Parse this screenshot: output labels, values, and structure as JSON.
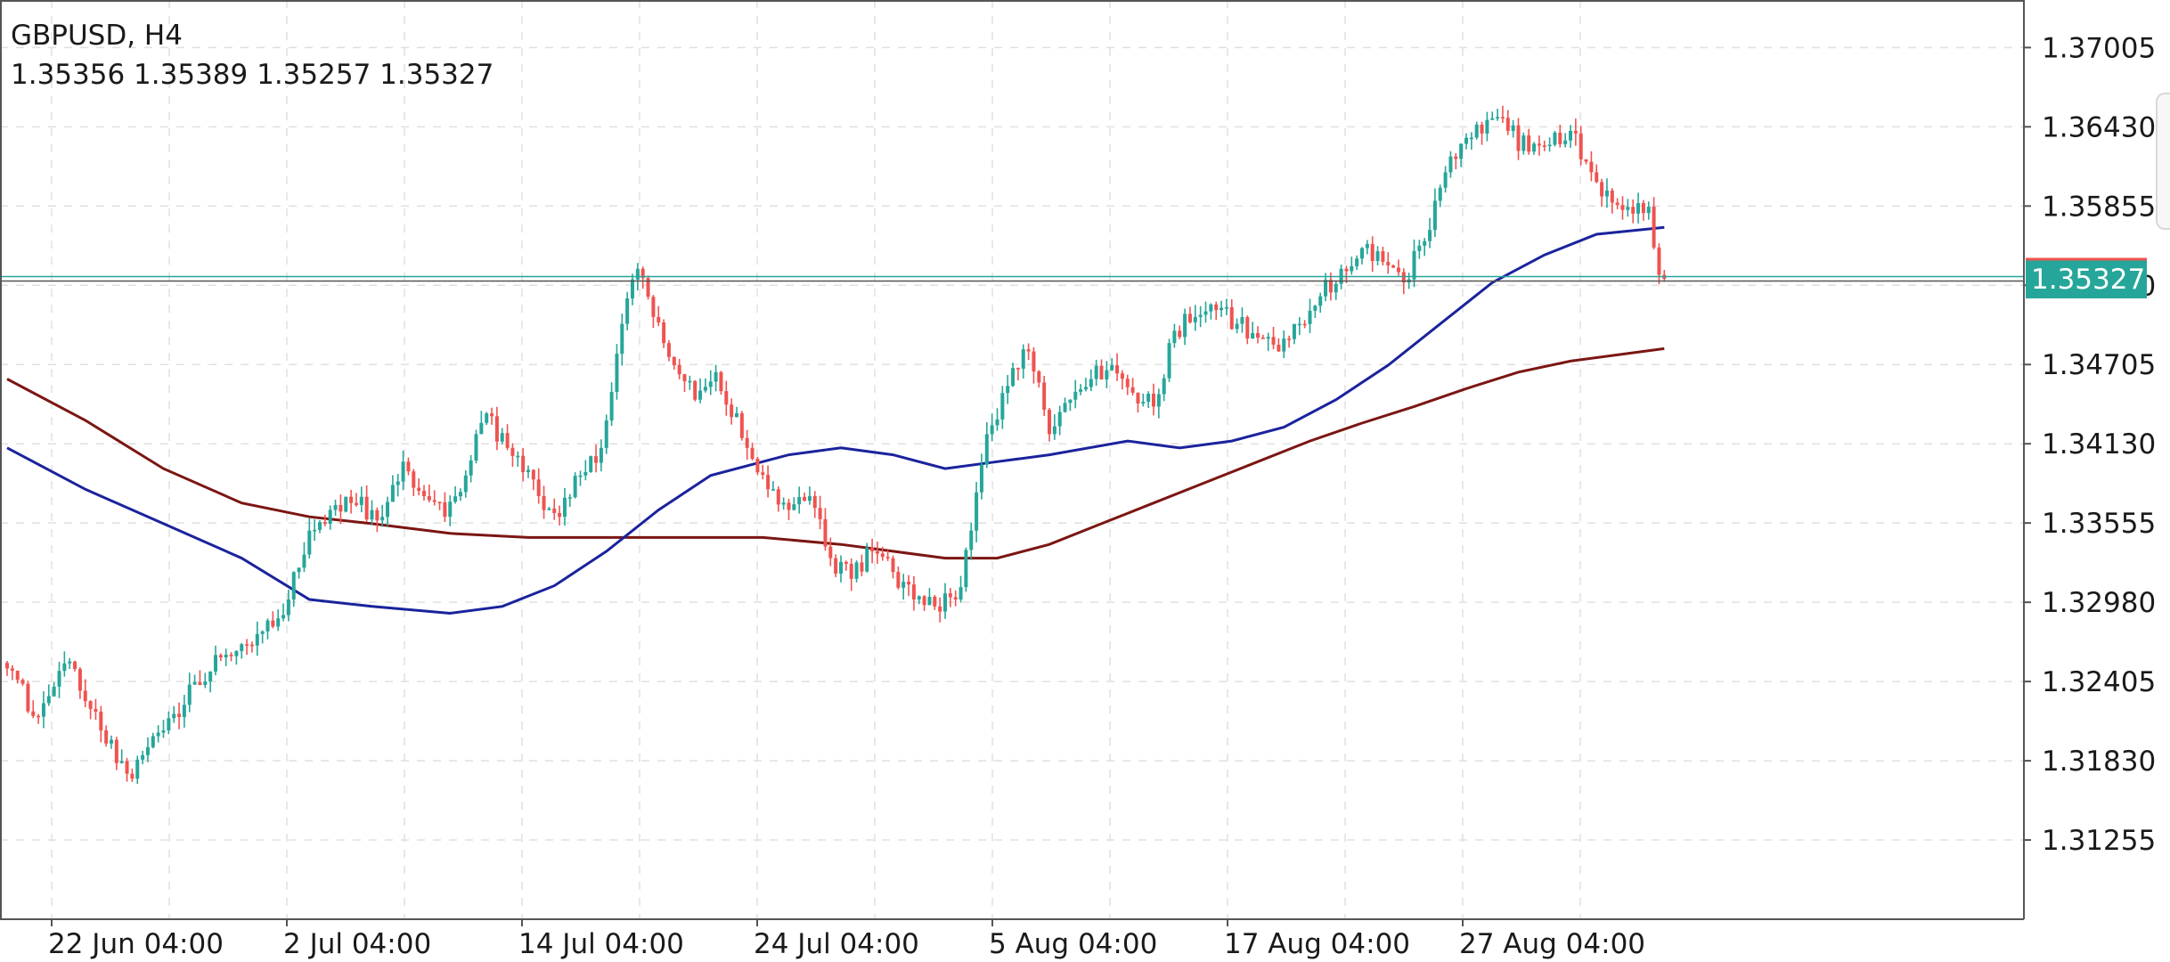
{
  "header": {
    "symbol_timeframe": "GBPUSD, H4",
    "ohlc": "1.35356 1.35389 1.35257 1.35327"
  },
  "price_tag": {
    "label": "1.35327",
    "color": "#26a69a"
  },
  "chart_data": {
    "type": "candlestick",
    "symbol": "GBPUSD",
    "timeframe": "H4",
    "y_axis": {
      "ticks": [
        "1.37005",
        "1.36430",
        "1.35855",
        "1.35280",
        "1.34705",
        "1.34130",
        "1.33555",
        "1.32980",
        "1.32405",
        "1.31830",
        "1.31255"
      ],
      "range": [
        1.3068,
        1.3735
      ]
    },
    "x_axis": {
      "ticks": [
        "22 Jun 04:00",
        "2 Jul 04:00",
        "14 Jul 04:00",
        "24 Jul 04:00",
        "5 Aug 04:00",
        "17 Aug 04:00",
        "27 Aug 04:00"
      ]
    },
    "grid": true,
    "colors": {
      "bull": "#26a69a",
      "bear": "#ef5350",
      "ma_fast": "#1a239c",
      "ma_slow": "#7b1613",
      "grid": "#e0e0e0",
      "price_line": "#26a69a"
    },
    "last_price": 1.35327,
    "price_anchors": [
      [
        0,
        1.325
      ],
      [
        6,
        1.3215
      ],
      [
        12,
        1.3255
      ],
      [
        18,
        1.3205
      ],
      [
        24,
        1.317
      ],
      [
        30,
        1.3205
      ],
      [
        36,
        1.324
      ],
      [
        42,
        1.326
      ],
      [
        48,
        1.3275
      ],
      [
        54,
        1.33
      ],
      [
        58,
        1.335
      ],
      [
        62,
        1.3365
      ],
      [
        66,
        1.337
      ],
      [
        72,
        1.336
      ],
      [
        76,
        1.34
      ],
      [
        80,
        1.3375
      ],
      [
        84,
        1.336
      ],
      [
        88,
        1.339
      ],
      [
        92,
        1.3435
      ],
      [
        96,
        1.341
      ],
      [
        102,
        1.3375
      ],
      [
        106,
        1.336
      ],
      [
        110,
        1.339
      ],
      [
        114,
        1.341
      ],
      [
        118,
        1.35
      ],
      [
        121,
        1.354
      ],
      [
        124,
        1.3505
      ],
      [
        128,
        1.347
      ],
      [
        132,
        1.3445
      ],
      [
        136,
        1.3465
      ],
      [
        142,
        1.341
      ],
      [
        146,
        1.338
      ],
      [
        150,
        1.3365
      ],
      [
        154,
        1.3375
      ],
      [
        158,
        1.333
      ],
      [
        162,
        1.3315
      ],
      [
        166,
        1.3335
      ],
      [
        170,
        1.332
      ],
      [
        174,
        1.33
      ],
      [
        178,
        1.3295
      ],
      [
        182,
        1.33
      ],
      [
        185,
        1.335
      ],
      [
        188,
        1.342
      ],
      [
        192,
        1.3455
      ],
      [
        196,
        1.348
      ],
      [
        200,
        1.342
      ],
      [
        204,
        1.3445
      ],
      [
        208,
        1.346
      ],
      [
        212,
        1.347
      ],
      [
        216,
        1.345
      ],
      [
        220,
        1.344
      ],
      [
        224,
        1.3495
      ],
      [
        228,
        1.3505
      ],
      [
        232,
        1.351
      ],
      [
        236,
        1.35
      ],
      [
        240,
        1.349
      ],
      [
        244,
        1.348
      ],
      [
        248,
        1.35
      ],
      [
        252,
        1.352
      ],
      [
        256,
        1.354
      ],
      [
        260,
        1.3555
      ],
      [
        264,
        1.3545
      ],
      [
        268,
        1.353
      ],
      [
        272,
        1.356
      ],
      [
        276,
        1.361
      ],
      [
        280,
        1.3635
      ],
      [
        284,
        1.3648
      ],
      [
        288,
        1.364
      ],
      [
        292,
        1.3625
      ],
      [
        296,
        1.363
      ],
      [
        300,
        1.364
      ],
      [
        304,
        1.361
      ],
      [
        308,
        1.3588
      ],
      [
        312,
        1.358
      ],
      [
        315,
        1.3585
      ],
      [
        317,
        1.35356
      ],
      [
        318,
        1.35327
      ]
    ],
    "ma_fast": [
      [
        0,
        1.341
      ],
      [
        15,
        1.338
      ],
      [
        30,
        1.3355
      ],
      [
        45,
        1.333
      ],
      [
        58,
        1.33
      ],
      [
        70,
        1.3295
      ],
      [
        85,
        1.329
      ],
      [
        95,
        1.3295
      ],
      [
        105,
        1.331
      ],
      [
        115,
        1.3335
      ],
      [
        125,
        1.3365
      ],
      [
        135,
        1.339
      ],
      [
        150,
        1.3405
      ],
      [
        160,
        1.341
      ],
      [
        170,
        1.3405
      ],
      [
        180,
        1.3395
      ],
      [
        190,
        1.34
      ],
      [
        200,
        1.3405
      ],
      [
        215,
        1.3415
      ],
      [
        225,
        1.341
      ],
      [
        235,
        1.3415
      ],
      [
        245,
        1.3425
      ],
      [
        255,
        1.3445
      ],
      [
        265,
        1.347
      ],
      [
        275,
        1.35
      ],
      [
        285,
        1.353
      ],
      [
        295,
        1.355
      ],
      [
        305,
        1.3565
      ],
      [
        318,
        1.357
      ]
    ],
    "ma_slow": [
      [
        0,
        1.346
      ],
      [
        15,
        1.343
      ],
      [
        30,
        1.3395
      ],
      [
        45,
        1.337
      ],
      [
        58,
        1.336
      ],
      [
        70,
        1.3355
      ],
      [
        85,
        1.3348
      ],
      [
        100,
        1.3345
      ],
      [
        115,
        1.3345
      ],
      [
        130,
        1.3345
      ],
      [
        145,
        1.3345
      ],
      [
        160,
        1.334
      ],
      [
        170,
        1.3335
      ],
      [
        180,
        1.333
      ],
      [
        190,
        1.333
      ],
      [
        200,
        1.334
      ],
      [
        210,
        1.3355
      ],
      [
        220,
        1.337
      ],
      [
        230,
        1.3385
      ],
      [
        240,
        1.34
      ],
      [
        250,
        1.3415
      ],
      [
        260,
        1.3428
      ],
      [
        270,
        1.344
      ],
      [
        280,
        1.3453
      ],
      [
        290,
        1.3465
      ],
      [
        300,
        1.3473
      ],
      [
        318,
        1.3482
      ]
    ]
  }
}
